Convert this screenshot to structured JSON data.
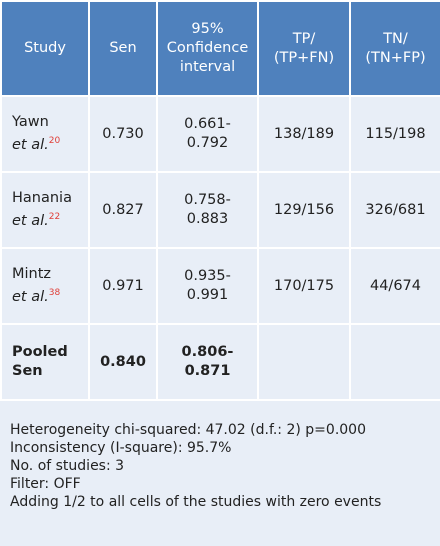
{
  "table": {
    "headers": [
      [
        "Study"
      ],
      [
        "Sen"
      ],
      [
        "95%",
        "Confidence",
        "interval"
      ],
      [
        "TP/",
        "(TP+FN)"
      ],
      [
        "TN/",
        "(TN+FP)"
      ]
    ],
    "rows": [
      {
        "name": "Yawn",
        "suffix": "et al.",
        "ref": "20",
        "sen": "0.730",
        "ci": "0.661-0.792",
        "tp": "138/189",
        "tn": "115/198"
      },
      {
        "name": "Hanania",
        "suffix": "et al.",
        "ref": "22",
        "sen": "0.827",
        "ci": "0.758-0.883",
        "tp": "129/156",
        "tn": "326/681"
      },
      {
        "name": "Mintz",
        "suffix": "et al.",
        "ref": "38",
        "sen": "0.971",
        "ci": "0.935-0.991",
        "tp": "170/175",
        "tn": "44/674"
      }
    ],
    "pooled": {
      "name": "Pooled Sen",
      "sen": "0.840",
      "ci": "0.806-0.871"
    }
  },
  "footer": [
    "Heterogeneity chi-squared: 47.02 (d.f.: 2) p=0.000",
    "Inconsistency (I-square): 95.7%",
    "No. of studies: 3",
    "Filter: OFF",
    "Adding 1/2 to all cells of the studies with zero events"
  ]
}
